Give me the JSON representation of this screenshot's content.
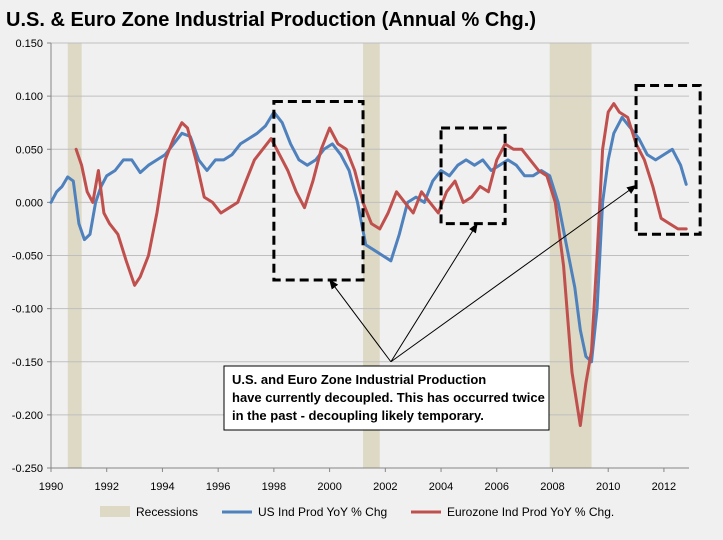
{
  "chart_data": {
    "type": "line",
    "title": "U.S. & Euro Zone Industrial Production (Annual % Chg.)",
    "xlabel": "",
    "ylabel": "",
    "xlim": [
      1990,
      2012.9
    ],
    "ylim": [
      -0.25,
      0.15
    ],
    "yticks": [
      0.15,
      0.1,
      0.05,
      0.0,
      -0.05,
      -0.1,
      -0.15,
      -0.2,
      -0.25
    ],
    "ytick_labels": [
      "0.150",
      "0.100",
      "0.050",
      "0.000",
      "-0.050",
      "-0.100",
      "-0.150",
      "-0.200",
      "-0.250"
    ],
    "xticks": [
      1990,
      1992,
      1994,
      1996,
      1998,
      2000,
      2002,
      2004,
      2006,
      2008,
      2010,
      2012
    ],
    "xtick_labels": [
      "1990",
      "1992",
      "1994",
      "1996",
      "1998",
      "2000",
      "2002",
      "2004",
      "2006",
      "2008",
      "2010",
      "2012"
    ],
    "grid": "horizontal",
    "legend_position": "bottom",
    "recessions": {
      "name": "Recessions",
      "color": "#ddd9c4",
      "periods": [
        [
          1990.6,
          1991.1
        ],
        [
          2001.2,
          2001.8
        ],
        [
          2007.9,
          2009.4
        ]
      ]
    },
    "series": [
      {
        "name": "US Ind Prod YoY % Chg",
        "color": "#4f81bd",
        "x": [
          1990.0,
          1990.2,
          1990.4,
          1990.6,
          1990.8,
          1991.0,
          1991.2,
          1991.4,
          1991.6,
          1991.8,
          1992.0,
          1992.3,
          1992.6,
          1992.9,
          1993.2,
          1993.5,
          1993.8,
          1994.1,
          1994.4,
          1994.7,
          1995.0,
          1995.3,
          1995.6,
          1995.9,
          1996.2,
          1996.5,
          1996.8,
          1997.1,
          1997.4,
          1997.7,
          1998.0,
          1998.3,
          1998.6,
          1998.9,
          1999.2,
          1999.5,
          1999.8,
          2000.1,
          2000.4,
          2000.7,
          2001.0,
          2001.3,
          2001.6,
          2001.9,
          2002.2,
          2002.5,
          2002.8,
          2003.1,
          2003.4,
          2003.7,
          2004.0,
          2004.3,
          2004.6,
          2004.9,
          2005.2,
          2005.5,
          2005.8,
          2006.1,
          2006.4,
          2006.7,
          2007.0,
          2007.3,
          2007.6,
          2007.9,
          2008.2,
          2008.5,
          2008.8,
          2009.0,
          2009.2,
          2009.4,
          2009.6,
          2009.8,
          2010.0,
          2010.2,
          2010.5,
          2010.8,
          2011.1,
          2011.4,
          2011.7,
          2012.0,
          2012.3,
          2012.6,
          2012.8
        ],
        "values": [
          0.0,
          0.01,
          0.015,
          0.024,
          0.02,
          -0.02,
          -0.035,
          -0.03,
          0.0,
          0.015,
          0.025,
          0.03,
          0.04,
          0.04,
          0.028,
          0.035,
          0.04,
          0.045,
          0.055,
          0.065,
          0.062,
          0.04,
          0.03,
          0.04,
          0.04,
          0.045,
          0.055,
          0.06,
          0.065,
          0.072,
          0.085,
          0.075,
          0.055,
          0.04,
          0.035,
          0.04,
          0.05,
          0.055,
          0.045,
          0.03,
          0.0,
          -0.04,
          -0.045,
          -0.05,
          -0.055,
          -0.03,
          0.0,
          0.005,
          0.0,
          0.02,
          0.03,
          0.025,
          0.035,
          0.04,
          0.035,
          0.04,
          0.03,
          0.035,
          0.04,
          0.035,
          0.025,
          0.025,
          0.03,
          0.025,
          0.0,
          -0.04,
          -0.08,
          -0.12,
          -0.145,
          -0.15,
          -0.1,
          0.0,
          0.04,
          0.065,
          0.08,
          0.07,
          0.06,
          0.045,
          0.04,
          0.045,
          0.05,
          0.035,
          0.017
        ]
      },
      {
        "name": "Eurozone Ind Prod YoY % Chg.",
        "color": "#c0504d",
        "x": [
          1990.9,
          1991.1,
          1991.3,
          1991.5,
          1991.7,
          1991.9,
          1992.1,
          1992.4,
          1992.7,
          1993.0,
          1993.2,
          1993.5,
          1993.8,
          1994.1,
          1994.4,
          1994.7,
          1994.9,
          1995.2,
          1995.5,
          1995.8,
          1996.1,
          1996.4,
          1996.7,
          1997.0,
          1997.3,
          1997.6,
          1997.9,
          1998.2,
          1998.5,
          1998.8,
          1999.1,
          1999.4,
          1999.7,
          2000.0,
          2000.3,
          2000.6,
          2000.9,
          2001.2,
          2001.5,
          2001.8,
          2002.1,
          2002.4,
          2002.7,
          2003.0,
          2003.3,
          2003.6,
          2003.9,
          2004.2,
          2004.5,
          2004.8,
          2005.1,
          2005.4,
          2005.7,
          2006.0,
          2006.3,
          2006.6,
          2006.9,
          2007.2,
          2007.5,
          2007.8,
          2008.1,
          2008.4,
          2008.7,
          2009.0,
          2009.2,
          2009.4,
          2009.6,
          2009.8,
          2010.0,
          2010.2,
          2010.4,
          2010.7,
          2011.0,
          2011.3,
          2011.6,
          2011.9,
          2012.2,
          2012.5,
          2012.8
        ],
        "values": [
          0.05,
          0.035,
          0.01,
          0.0,
          0.03,
          -0.01,
          -0.02,
          -0.03,
          -0.055,
          -0.078,
          -0.07,
          -0.05,
          -0.01,
          0.04,
          0.06,
          0.075,
          0.07,
          0.04,
          0.005,
          0.0,
          -0.01,
          -0.005,
          0.0,
          0.02,
          0.04,
          0.05,
          0.06,
          0.045,
          0.03,
          0.01,
          -0.005,
          0.02,
          0.05,
          0.07,
          0.055,
          0.05,
          0.03,
          0.0,
          -0.02,
          -0.025,
          -0.01,
          0.01,
          0.0,
          -0.01,
          0.01,
          0.0,
          -0.01,
          0.01,
          0.02,
          0.0,
          0.005,
          0.015,
          0.01,
          0.04,
          0.055,
          0.05,
          0.05,
          0.04,
          0.03,
          0.025,
          0.0,
          -0.06,
          -0.16,
          -0.21,
          -0.17,
          -0.14,
          -0.05,
          0.05,
          0.085,
          0.093,
          0.085,
          0.08,
          0.055,
          0.04,
          0.015,
          -0.015,
          -0.02,
          -0.025,
          -0.025
        ]
      }
    ],
    "highlight_boxes": [
      {
        "x": [
          1998.0,
          2001.2
        ],
        "y": [
          -0.073,
          0.095
        ]
      },
      {
        "x": [
          2004.0,
          2006.3
        ],
        "y": [
          -0.02,
          0.07
        ]
      },
      {
        "x": [
          2011.0,
          2013.3
        ],
        "y": [
          -0.03,
          0.11
        ]
      }
    ],
    "annotation": {
      "lines": [
        "U.S. and Euro Zone Industrial Production",
        "have currently decoupled.  This has occurred twice",
        "in the past - decoupling likely temporary."
      ],
      "arrow_anchor": {
        "x": 2002.2,
        "y": -0.15
      },
      "arrow_targets": [
        {
          "x": 2000.0,
          "y": -0.073
        },
        {
          "x": 2005.3,
          "y": -0.02
        },
        {
          "x": 2011.0,
          "y": 0.016
        }
      ]
    }
  }
}
